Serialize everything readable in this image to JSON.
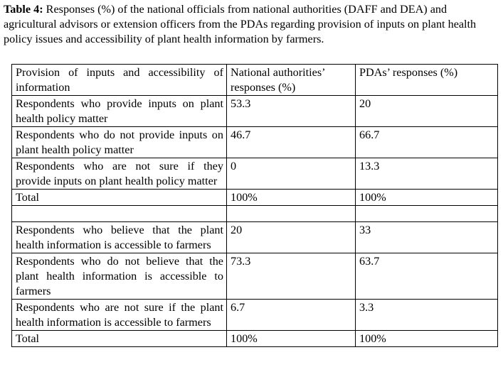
{
  "caption": {
    "label": "Table 4:",
    "text": " Responses (%) of the national officials from national authorities (DAFF and DEA) and agricultural advisors or extension officers from the PDAs regarding provision of inputs on plant health policy issues and accessibility of plant health information by farmers."
  },
  "table": {
    "headers": [
      "Provision of inputs and accessibility of information",
      "National authorities’ responses (%)",
      "PDAs’ responses (%)"
    ],
    "rows": [
      [
        "Respondents who provide inputs on plant health policy matter",
        "53.3",
        "20"
      ],
      [
        "Respondents who do not provide inputs on plant health policy matter",
        "46.7",
        "66.7"
      ],
      [
        "Respondents who are not sure if they provide inputs on plant health policy matter",
        "0",
        "13.3"
      ],
      [
        "Total",
        "100%",
        "100%"
      ],
      [
        "",
        "",
        ""
      ],
      [
        "Respondents who believe that the plant health information is accessible to farmers",
        "20",
        "33"
      ],
      [
        "Respondents who do not believe that the plant health information is accessible to farmers",
        "73.3",
        "63.7"
      ],
      [
        "Respondents who are not sure if the plant health information is accessible to farmers",
        "6.7",
        "3.3"
      ],
      [
        "Total",
        "100%",
        "100%"
      ]
    ]
  }
}
